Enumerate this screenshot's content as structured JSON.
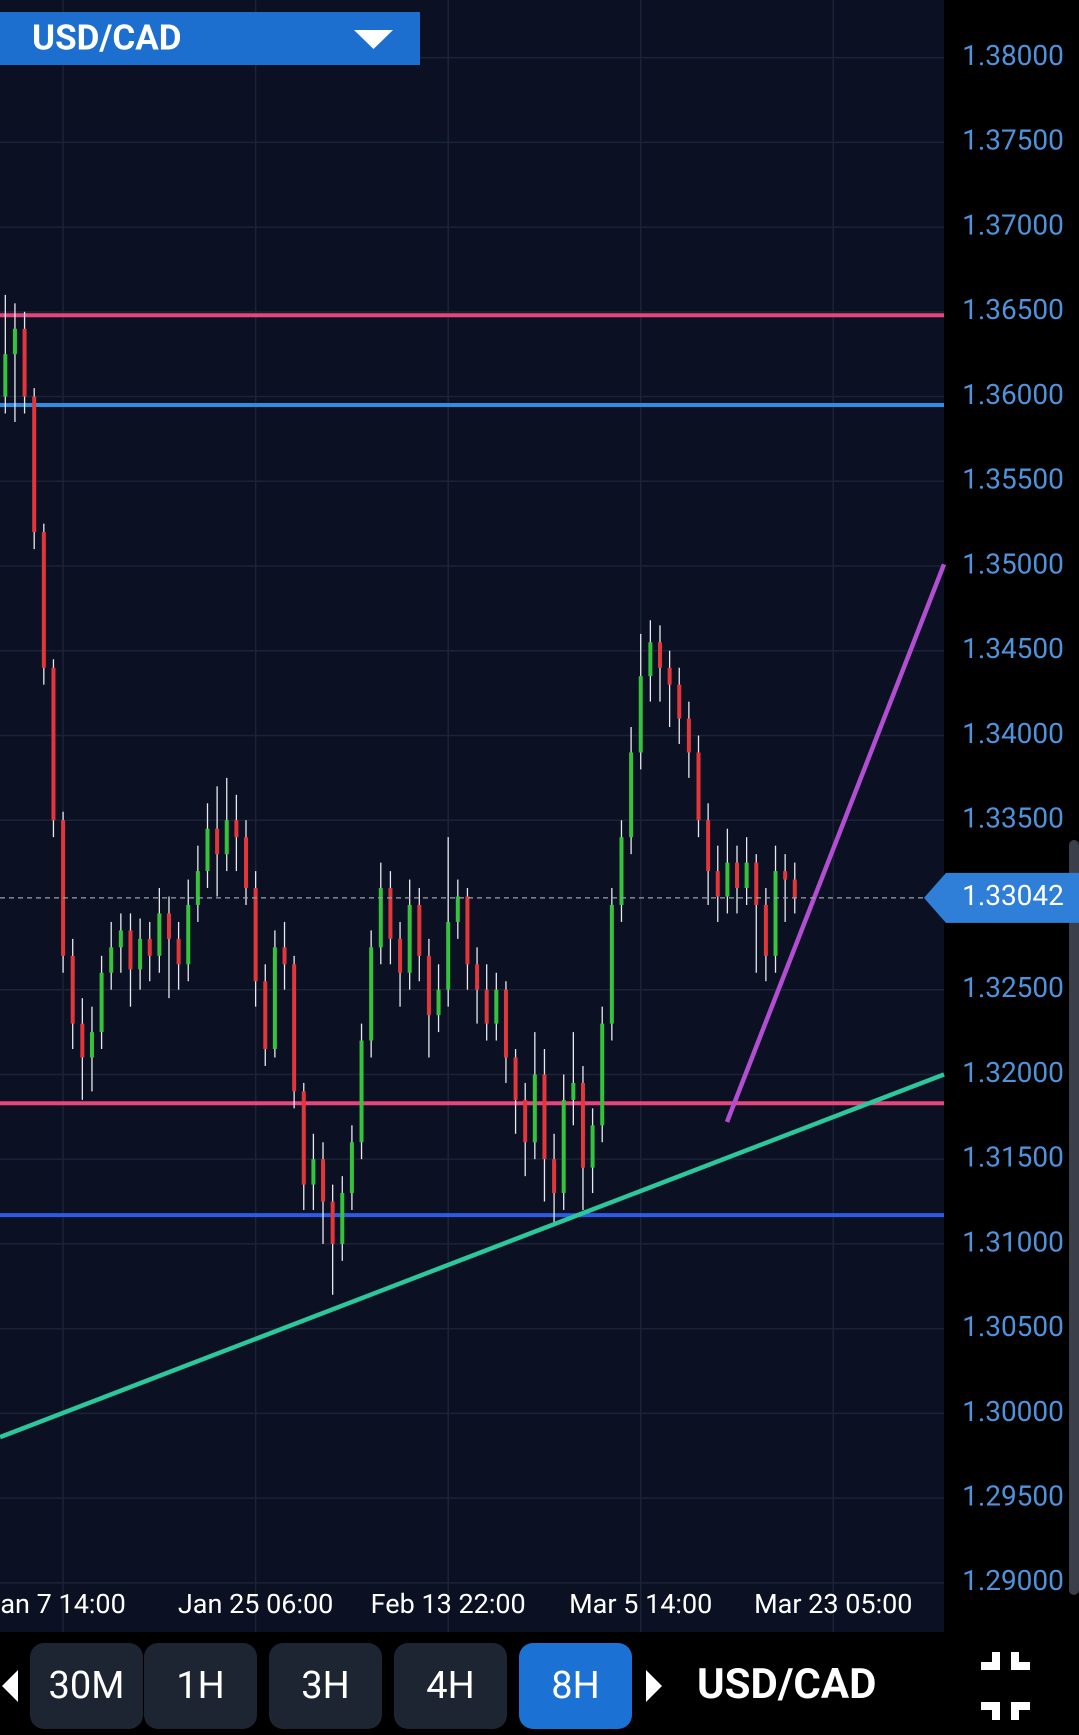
{
  "header": {
    "symbol": "USD/CAD"
  },
  "toolbar": {
    "timeframes": [
      "30M",
      "1H",
      "3H",
      "4H",
      "8H"
    ],
    "selected_index": 4,
    "symbol": "USD/CAD"
  },
  "chart_data": {
    "type": "candlestick",
    "categories": [
      null,
      null,
      null,
      null,
      null,
      null,
      "an 7 14:00",
      null,
      null,
      null,
      null,
      null,
      null,
      null,
      null,
      null,
      null,
      null,
      null,
      null,
      null,
      null,
      null,
      null,
      null,
      null,
      "Jan 25 06:00",
      null,
      null,
      null,
      null,
      null,
      null,
      null,
      null,
      null,
      null,
      null,
      null,
      null,
      null,
      null,
      null,
      null,
      null,
      null,
      "Feb 13 22:00",
      null,
      null,
      null,
      null,
      null,
      null,
      null,
      null,
      null,
      null,
      null,
      null,
      null,
      null,
      null,
      null,
      null,
      null,
      null,
      "Mar 5 14:00",
      null,
      null,
      null,
      null,
      null,
      null,
      null,
      null,
      null,
      null,
      null,
      null,
      null,
      null,
      null,
      null,
      null,
      null,
      null,
      "Mar 23 05:00",
      null,
      null,
      null,
      null,
      null,
      null,
      null,
      null,
      null,
      null,
      null
    ],
    "open": [
      1.36,
      1.3625,
      1.364,
      1.36,
      1.352,
      1.344,
      1.335,
      1.327,
      1.323,
      1.321,
      1.3225,
      1.326,
      1.3275,
      1.3285,
      1.3262,
      1.328,
      1.327,
      1.3295,
      1.328,
      1.3265,
      1.33,
      1.332,
      1.3345,
      1.333,
      1.335,
      1.334,
      1.331,
      1.3255,
      1.3215,
      1.3275,
      1.3265,
      1.319,
      1.3135,
      1.315,
      1.3125,
      1.31,
      1.313,
      1.316,
      1.322,
      1.3275,
      1.331,
      1.328,
      1.326,
      1.33,
      1.327,
      1.3235,
      1.325,
      1.329,
      1.3305,
      1.3265,
      1.325,
      1.323,
      1.325,
      1.321,
      1.3185,
      1.316,
      1.32,
      1.315,
      1.313,
      1.3185,
      1.3195,
      1.3145,
      1.317,
      1.323,
      1.33,
      1.334,
      1.339,
      1.3435,
      1.3455,
      1.344,
      1.343,
      1.341,
      1.339,
      1.335,
      1.332,
      1.3305,
      1.3325,
      1.331,
      1.3325,
      1.33,
      1.327,
      1.332,
      1.3315,
      null,
      null,
      null,
      null,
      null,
      null,
      null,
      null,
      null,
      null,
      null,
      null,
      null,
      null,
      null
    ],
    "high": [
      1.366,
      1.3655,
      1.365,
      1.3605,
      1.3525,
      1.3445,
      1.3355,
      1.328,
      1.3245,
      1.324,
      1.327,
      1.329,
      1.3295,
      1.3295,
      1.3292,
      1.329,
      1.331,
      1.3305,
      1.329,
      1.3315,
      1.3335,
      1.336,
      1.337,
      1.3375,
      1.3365,
      1.335,
      1.332,
      1.3265,
      1.3285,
      1.329,
      1.327,
      1.3195,
      1.3165,
      1.316,
      1.3135,
      1.314,
      1.317,
      1.323,
      1.3285,
      1.3325,
      1.332,
      1.329,
      1.3315,
      1.331,
      1.328,
      1.3265,
      1.334,
      1.3315,
      1.331,
      1.3275,
      1.3265,
      1.326,
      1.3255,
      1.3215,
      1.3195,
      1.3225,
      1.3215,
      1.3165,
      1.32,
      1.3225,
      1.3205,
      1.318,
      1.324,
      1.331,
      1.335,
      1.3405,
      1.346,
      1.3468,
      1.3465,
      1.345,
      1.344,
      1.342,
      1.34,
      1.336,
      1.3335,
      1.3345,
      1.3335,
      1.334,
      1.333,
      1.331,
      1.3335,
      1.333,
      1.3325,
      null,
      null,
      null,
      null,
      null,
      null,
      null,
      null,
      null,
      null,
      null,
      null,
      null,
      null,
      null
    ],
    "low": [
      1.359,
      1.3585,
      1.359,
      1.351,
      1.343,
      1.334,
      1.326,
      1.3215,
      1.3185,
      1.319,
      1.3215,
      1.325,
      1.326,
      1.324,
      1.325,
      1.3255,
      1.326,
      1.3245,
      1.325,
      1.3255,
      1.329,
      1.331,
      1.3305,
      1.332,
      1.332,
      1.33,
      1.324,
      1.3205,
      1.321,
      1.325,
      1.318,
      1.312,
      1.312,
      1.31,
      1.307,
      1.309,
      1.312,
      1.315,
      1.321,
      1.3265,
      1.3265,
      1.324,
      1.325,
      1.3255,
      1.321,
      1.3225,
      1.324,
      1.328,
      1.325,
      1.323,
      1.322,
      1.322,
      1.3195,
      1.3165,
      1.314,
      1.315,
      1.3125,
      1.3112,
      1.312,
      1.317,
      1.312,
      1.313,
      1.316,
      1.322,
      1.329,
      1.333,
      1.338,
      1.342,
      1.342,
      1.3405,
      1.3395,
      1.3375,
      1.334,
      1.33,
      1.329,
      1.3295,
      1.3295,
      1.33,
      1.326,
      1.3255,
      1.326,
      1.329,
      1.3295,
      null,
      null,
      null,
      null,
      null,
      null,
      null,
      null,
      null,
      null,
      null,
      null,
      null,
      null,
      null
    ],
    "close": [
      1.3625,
      1.364,
      1.36,
      1.352,
      1.344,
      1.335,
      1.327,
      1.323,
      1.321,
      1.3225,
      1.326,
      1.3275,
      1.3285,
      1.3262,
      1.328,
      1.327,
      1.3295,
      1.328,
      1.3265,
      1.33,
      1.332,
      1.3345,
      1.333,
      1.335,
      1.334,
      1.331,
      1.3255,
      1.3215,
      1.3275,
      1.3265,
      1.319,
      1.3135,
      1.315,
      1.3125,
      1.31,
      1.313,
      1.316,
      1.322,
      1.3275,
      1.331,
      1.328,
      1.326,
      1.33,
      1.327,
      1.3235,
      1.325,
      1.329,
      1.3305,
      1.3265,
      1.325,
      1.323,
      1.325,
      1.321,
      1.3185,
      1.316,
      1.32,
      1.315,
      1.313,
      1.3185,
      1.3195,
      1.3145,
      1.317,
      1.323,
      1.33,
      1.334,
      1.339,
      1.3435,
      1.3455,
      1.344,
      1.343,
      1.341,
      1.339,
      1.335,
      1.332,
      1.3305,
      1.3325,
      1.331,
      1.3325,
      1.33,
      1.327,
      1.332,
      1.3315,
      1.33042,
      null,
      null,
      null,
      null,
      null,
      null,
      null,
      null,
      null,
      null,
      null,
      null,
      null,
      null,
      null
    ],
    "up_color": "#35c23c",
    "down_color": "#e2363b",
    "wick_color": "#e8e8ee",
    "ylim": [
      1.2871,
      1.3834
    ],
    "yticks": [
      {
        "value": 1.38,
        "label": "1.38000"
      },
      {
        "value": 1.375,
        "label": "1.37500"
      },
      {
        "value": 1.37,
        "label": "1.37000"
      },
      {
        "value": 1.365,
        "label": "1.36500"
      },
      {
        "value": 1.36,
        "label": "1.36000"
      },
      {
        "value": 1.355,
        "label": "1.35500"
      },
      {
        "value": 1.35,
        "label": "1.35000"
      },
      {
        "value": 1.345,
        "label": "1.34500"
      },
      {
        "value": 1.34,
        "label": "1.34000"
      },
      {
        "value": 1.335,
        "label": "1.33500"
      },
      {
        "value": 1.325,
        "label": "1.32500"
      },
      {
        "value": 1.32,
        "label": "1.32000"
      },
      {
        "value": 1.315,
        "label": "1.31500"
      },
      {
        "value": 1.31,
        "label": "1.31000"
      },
      {
        "value": 1.305,
        "label": "1.30500"
      },
      {
        "value": 1.3,
        "label": "1.30000"
      },
      {
        "value": 1.295,
        "label": "1.29500"
      },
      {
        "value": 1.29,
        "label": "1.29000"
      }
    ],
    "grid": true,
    "current_price": 1.33042,
    "levels": [
      {
        "value": 1.3648,
        "color": "#e8457c"
      },
      {
        "value": 1.3595,
        "color": "#2f8ee3"
      },
      {
        "value": 1.3183,
        "color": "#e8457c"
      },
      {
        "value": 1.3117,
        "color": "#2c5ce6"
      }
    ],
    "trendlines": [
      {
        "x": [
          -0.55,
          97.5
        ],
        "values": [
          1.2986,
          1.32
        ],
        "color": "#2cc79b"
      },
      {
        "x": [
          74.96,
          97.5
        ],
        "values": [
          1.3172,
          1.3501
        ],
        "color": "#b24ed2"
      }
    ]
  }
}
